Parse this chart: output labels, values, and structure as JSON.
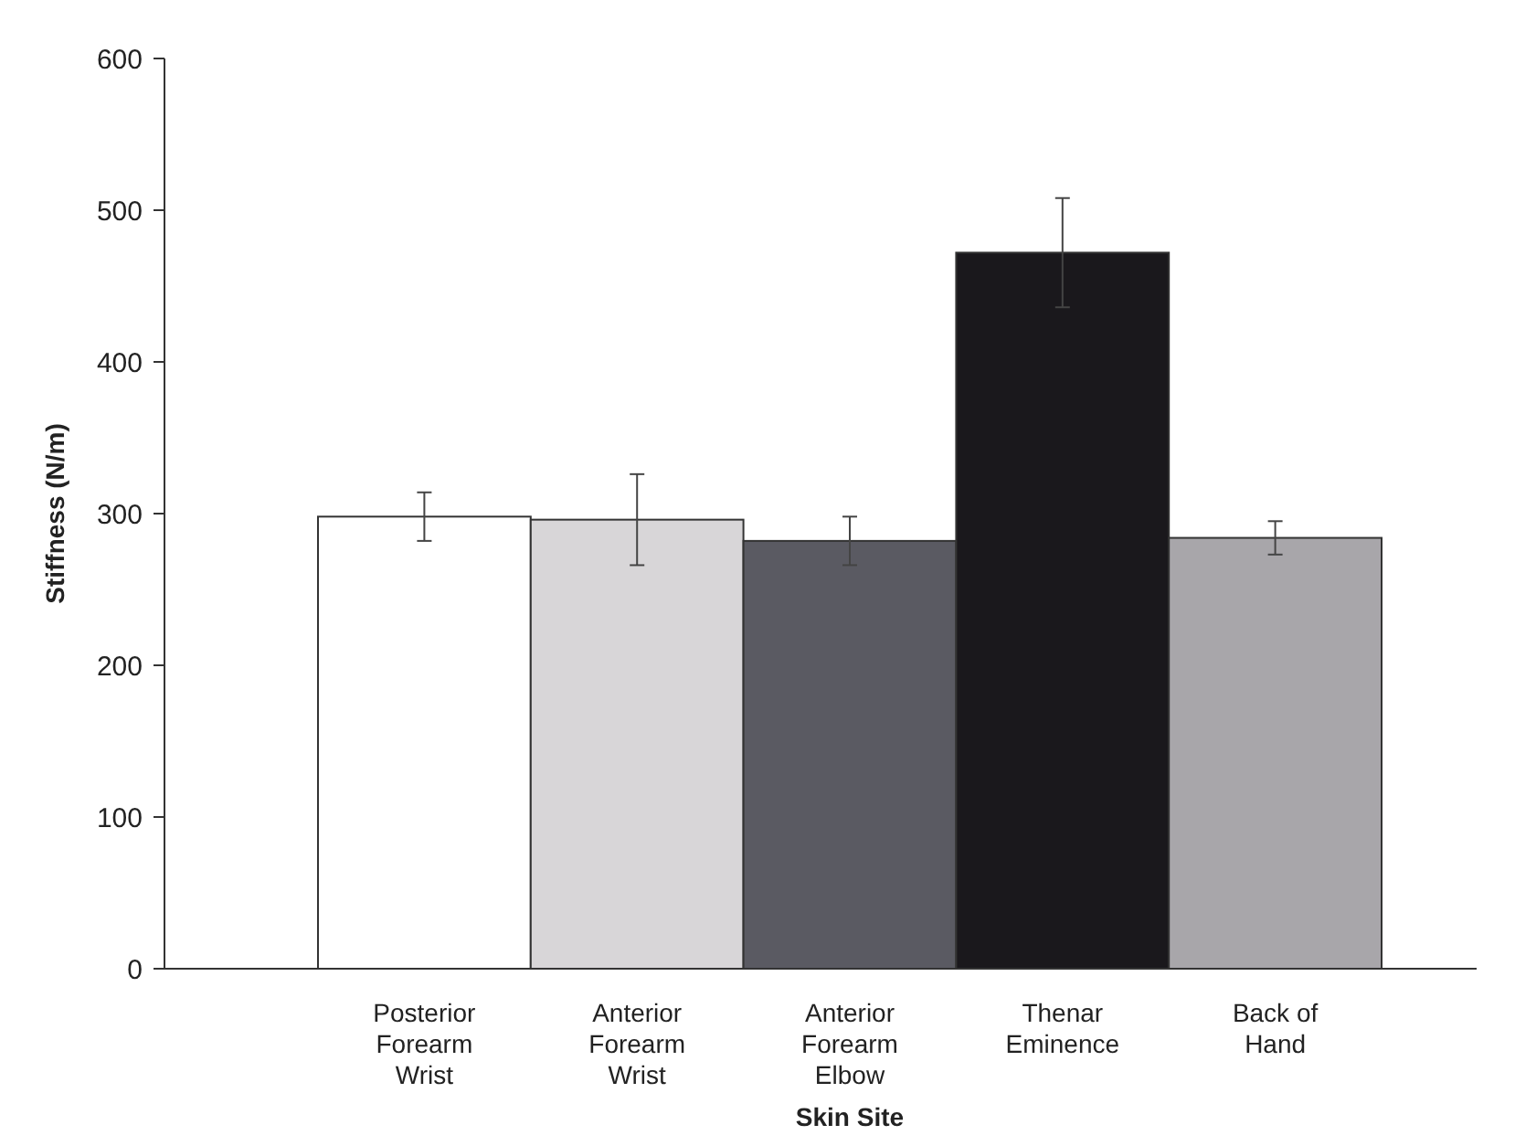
{
  "chart_data": {
    "type": "bar",
    "xlabel": "Skin Site",
    "ylabel": "Stiffness (N/m)",
    "categories": [
      "Posterior Forearm Wrist",
      "Anterior Forearm Wrist",
      "Anterior Forearm Elbow",
      "Thenar Eminence",
      "Back of Hand"
    ],
    "values": [
      298,
      296,
      282,
      472,
      284
    ],
    "errors": [
      16,
      30,
      16,
      36,
      11
    ],
    "colors": [
      "#ffffff",
      "#d8d6d8",
      "#5a5a62",
      "#1a181c",
      "#a8a6aa"
    ],
    "ylim": [
      0,
      600
    ],
    "yticks": [
      0,
      100,
      200,
      300,
      400,
      500,
      600
    ]
  }
}
